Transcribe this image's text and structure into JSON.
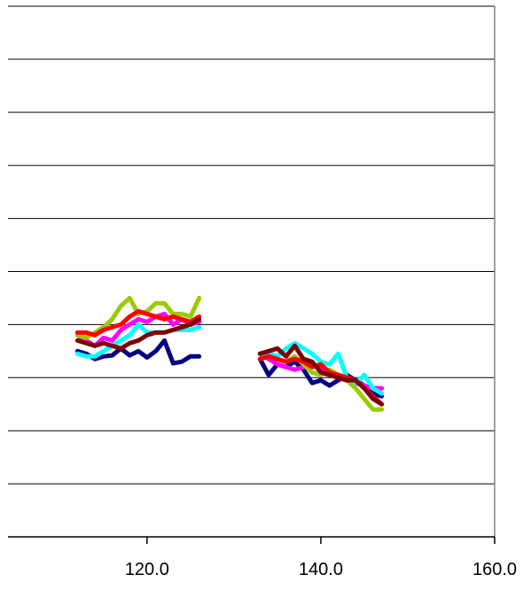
{
  "chart_data": {
    "type": "line",
    "title": "",
    "xlabel": "",
    "ylabel": "",
    "xlim": [
      104.0,
      160.0
    ],
    "ylim": [
      0,
      10
    ],
    "x_ticks": [
      120.0,
      140.0,
      160.0
    ],
    "x_tick_labels": [
      "120.0",
      "140.0",
      "160.0"
    ],
    "grid": "horizontal",
    "legend": "none",
    "series": [
      {
        "color": "#000080",
        "segments": [
          {
            "x": [
              112,
              113,
              114,
              115,
              116,
              117,
              118,
              119,
              120,
              121,
              122,
              123,
              124,
              125,
              126
            ],
            "y": [
              3.5,
              3.45,
              3.35,
              3.4,
              3.42,
              3.55,
              3.42,
              3.5,
              3.38,
              3.5,
              3.7,
              3.27,
              3.3,
              3.4,
              3.4
            ]
          },
          {
            "x": [
              133,
              134,
              135,
              136,
              137,
              138,
              139,
              140,
              141,
              142,
              143,
              144,
              145,
              146,
              147
            ],
            "y": [
              3.35,
              3.05,
              3.25,
              3.2,
              3.3,
              3.15,
              2.9,
              2.95,
              2.85,
              2.95,
              3.05,
              2.95,
              2.85,
              2.7,
              2.65
            ]
          }
        ]
      },
      {
        "color": "#ff00ff",
        "segments": [
          {
            "x": [
              112,
              113,
              114,
              115,
              116,
              117,
              118,
              119,
              120,
              121,
              122,
              123,
              124,
              125,
              126
            ],
            "y": [
              3.8,
              3.7,
              3.6,
              3.75,
              3.7,
              3.9,
              4.0,
              4.1,
              4.05,
              4.15,
              4.2,
              4.0,
              4.1,
              4.0,
              4.05
            ]
          },
          {
            "x": [
              133,
              134,
              135,
              136,
              137,
              138,
              139,
              140,
              141,
              142,
              143,
              144,
              145,
              146,
              147
            ],
            "y": [
              3.45,
              3.35,
              3.25,
              3.2,
              3.15,
              3.2,
              3.25,
              3.15,
              3.1,
              3.05,
              3.0,
              2.9,
              2.85,
              2.8,
              2.8
            ]
          }
        ]
      },
      {
        "color": "#99cc00",
        "segments": [
          {
            "x": [
              112,
              113,
              114,
              115,
              116,
              117,
              118,
              119,
              120,
              121,
              122,
              123,
              124,
              125,
              126
            ],
            "y": [
              3.8,
              3.75,
              3.85,
              3.95,
              4.1,
              4.35,
              4.5,
              4.2,
              4.25,
              4.4,
              4.4,
              4.2,
              4.2,
              4.15,
              4.5
            ]
          },
          {
            "x": [
              133,
              134,
              135,
              136,
              137,
              138,
              139,
              140,
              141,
              142,
              143,
              144,
              145,
              146,
              147
            ],
            "y": [
              3.45,
              3.4,
              3.35,
              3.3,
              3.4,
              3.25,
              3.1,
              3.05,
              3.15,
              3.05,
              2.95,
              2.8,
              2.6,
              2.4,
              2.4
            ]
          }
        ]
      },
      {
        "color": "#00ffff",
        "segments": [
          {
            "x": [
              112,
              113,
              114,
              115,
              116,
              117,
              118,
              119,
              120,
              121,
              122,
              123,
              124,
              125,
              126
            ],
            "y": [
              3.45,
              3.4,
              3.4,
              3.5,
              3.6,
              3.7,
              3.8,
              4.0,
              3.85,
              3.85,
              3.85,
              3.9,
              3.9,
              3.9,
              3.95
            ]
          },
          {
            "x": [
              133,
              134,
              135,
              136,
              137,
              138,
              139,
              140,
              141,
              142,
              143,
              144,
              145,
              146,
              147
            ],
            "y": [
              3.45,
              3.45,
              3.4,
              3.55,
              3.65,
              3.55,
              3.45,
              3.3,
              3.25,
              3.45,
              3.0,
              2.9,
              3.05,
              2.8,
              2.7
            ]
          }
        ]
      },
      {
        "color": "#ff0000",
        "segments": [
          {
            "x": [
              112,
              113,
              114,
              115,
              116,
              117,
              118,
              119,
              120,
              121,
              122,
              123,
              124,
              125,
              126
            ],
            "y": [
              3.85,
              3.85,
              3.8,
              3.9,
              3.95,
              4.0,
              4.15,
              4.25,
              4.2,
              4.15,
              4.1,
              4.15,
              4.1,
              4.05,
              4.15
            ]
          },
          {
            "x": [
              133,
              134,
              135,
              136,
              137,
              138,
              139,
              140,
              141,
              142,
              143,
              144,
              145,
              146,
              147
            ],
            "y": [
              3.35,
              3.4,
              3.35,
              3.3,
              3.35,
              3.3,
              3.2,
              3.25,
              3.1,
              3.05,
              3.0,
              2.95,
              2.8,
              2.65,
              2.5
            ]
          }
        ]
      },
      {
        "color": "#800000",
        "segments": [
          {
            "x": [
              112,
              113,
              114,
              115,
              116,
              117,
              118,
              119,
              120,
              121,
              122,
              123,
              124,
              125,
              126
            ],
            "y": [
              3.7,
              3.65,
              3.6,
              3.65,
              3.6,
              3.55,
              3.65,
              3.7,
              3.8,
              3.85,
              3.85,
              3.9,
              3.95,
              4.0,
              4.1
            ]
          },
          {
            "x": [
              133,
              134,
              135,
              136,
              137,
              138,
              139,
              140,
              141,
              142,
              143,
              144,
              145,
              146,
              147
            ],
            "y": [
              3.45,
              3.5,
              3.55,
              3.4,
              3.6,
              3.35,
              3.3,
              3.1,
              3.05,
              3.0,
              2.95,
              2.95,
              2.8,
              2.6,
              2.5
            ]
          }
        ]
      }
    ]
  }
}
